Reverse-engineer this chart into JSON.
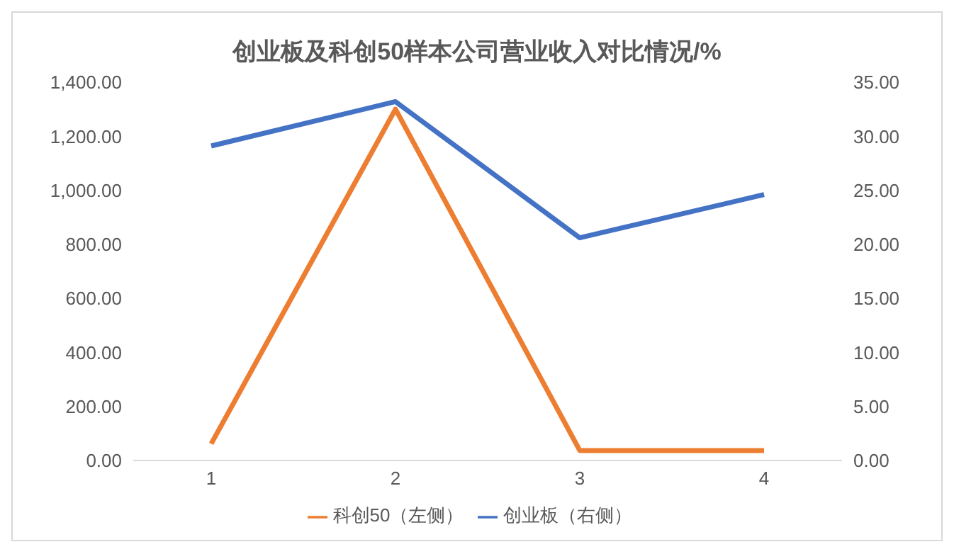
{
  "chart_data": {
    "type": "line",
    "title": "创业板及科创50样本公司营业收入对比情况/%",
    "categories": [
      "1",
      "2",
      "3",
      "4"
    ],
    "series": [
      {
        "name": "科创50（左侧）",
        "color": "#ed7d31",
        "values": [
          62,
          1300,
          37,
          37
        ]
      },
      {
        "name": "创业板（右侧）",
        "color": "#4472c4",
        "axis": "y2",
        "values": [
          29.1,
          33.2,
          20.6,
          24.6
        ]
      }
    ],
    "ylim": [
      0,
      1400
    ],
    "yticks": [
      {
        "value": 0,
        "label": "0.00"
      },
      {
        "value": 200,
        "label": "200.00"
      },
      {
        "value": 400,
        "label": "400.00"
      },
      {
        "value": 600,
        "label": "600.00"
      },
      {
        "value": 800,
        "label": "800.00"
      },
      {
        "value": 1000,
        "label": "1,000.00"
      },
      {
        "value": 1200,
        "label": "1,200.00"
      },
      {
        "value": 1400,
        "label": "1,400.00"
      }
    ],
    "y2lim": [
      0,
      35
    ],
    "y2ticks": [
      {
        "value": 0,
        "label": "0.00"
      },
      {
        "value": 5,
        "label": "5.00"
      },
      {
        "value": 10,
        "label": "10.00"
      },
      {
        "value": 15,
        "label": "15.00"
      },
      {
        "value": 20,
        "label": "20.00"
      },
      {
        "value": 25,
        "label": "25.00"
      },
      {
        "value": 30,
        "label": "30.00"
      },
      {
        "value": 35,
        "label": "35.00"
      }
    ],
    "grid": false,
    "legend": "bottom",
    "marker": "none",
    "line_style": "solid"
  }
}
